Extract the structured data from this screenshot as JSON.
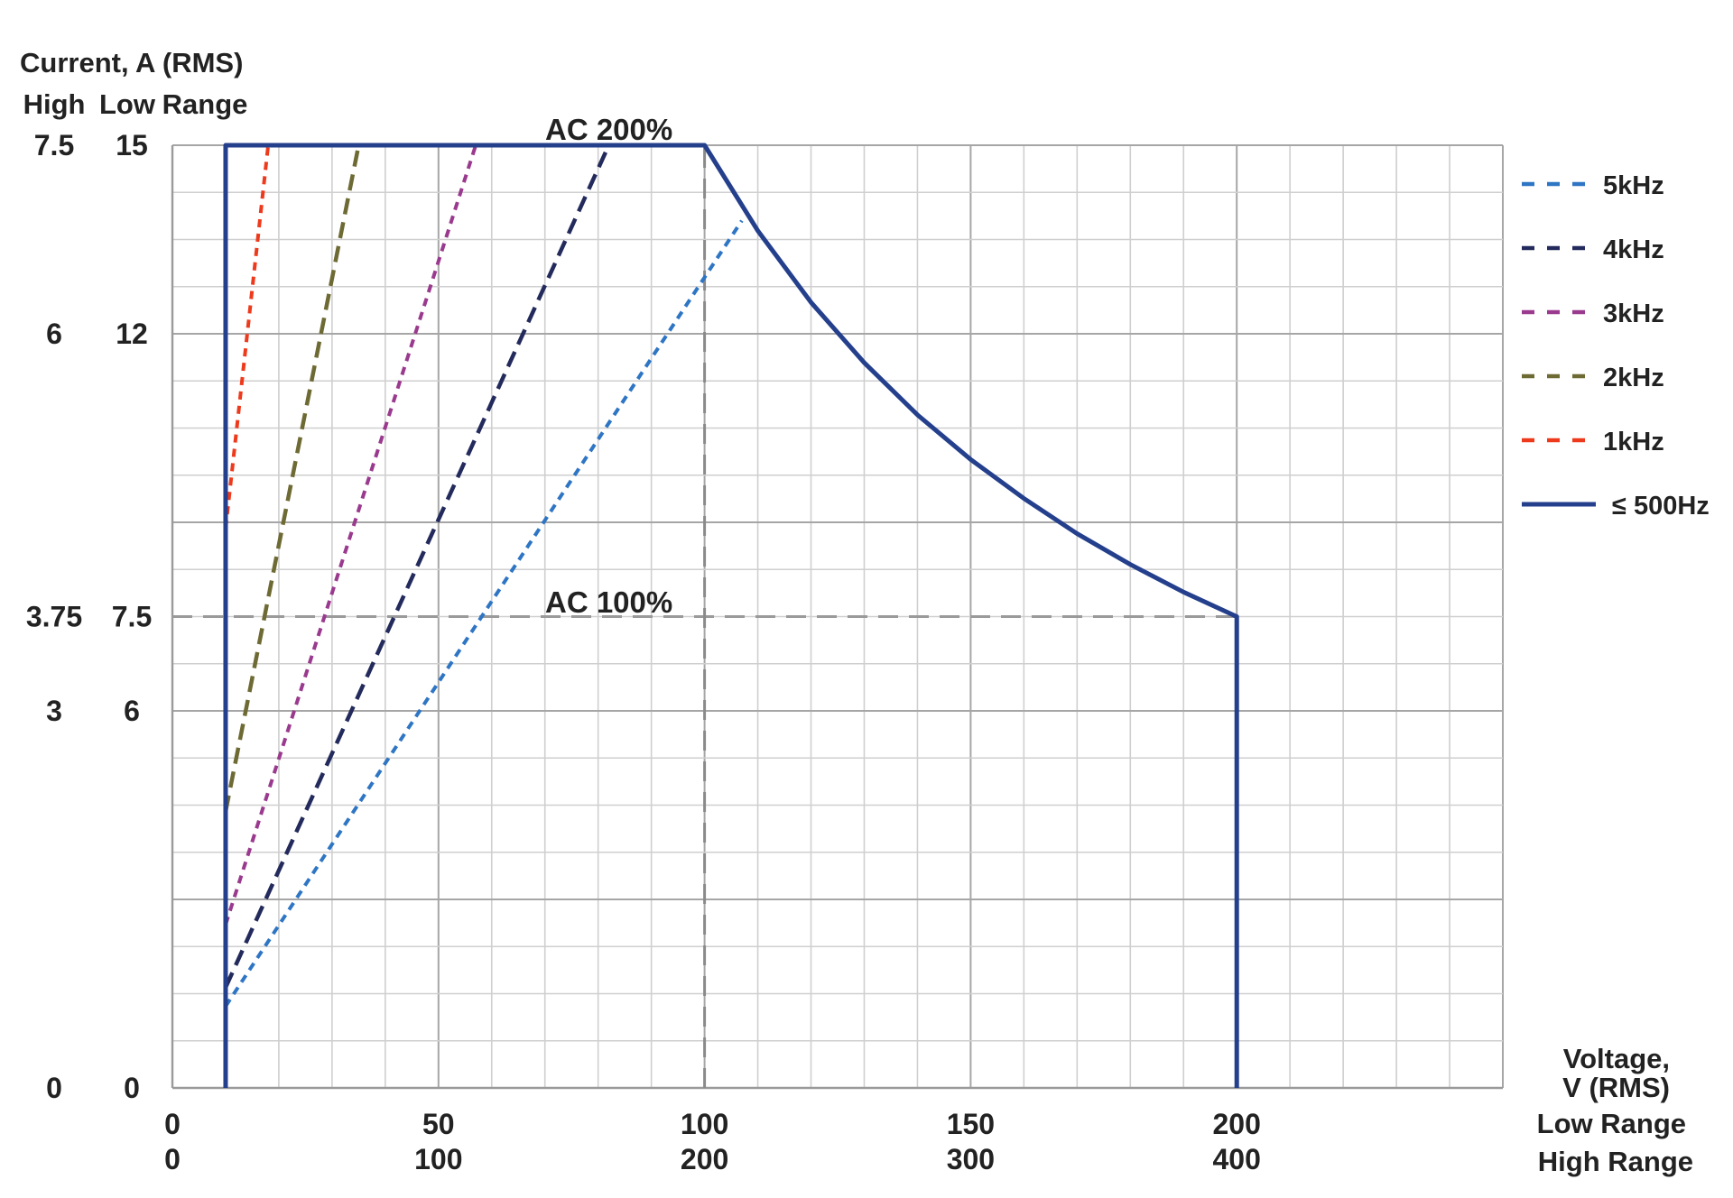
{
  "chart_data": {
    "type": "line",
    "y_title": "Current, A (RMS)",
    "y_subheaders": [
      "High",
      "Low",
      "Range"
    ],
    "x_title_lines": [
      "Voltage,",
      "V (RMS)"
    ],
    "x_low_range_label": "Low Range",
    "x_high_range_label": "High Range",
    "xlim": [
      0,
      250
    ],
    "ylim": [
      0,
      15
    ],
    "x_ticks": [
      {
        "value": 0,
        "low": "0",
        "high": "0"
      },
      {
        "value": 50,
        "low": "50",
        "high": "100"
      },
      {
        "value": 100,
        "low": "100",
        "high": "200"
      },
      {
        "value": 150,
        "low": "150",
        "high": "300"
      },
      {
        "value": 200,
        "low": "200",
        "high": "400"
      }
    ],
    "y_ticks": [
      {
        "value": 15,
        "high": "7.5",
        "low": "15"
      },
      {
        "value": 12,
        "high": "6",
        "low": "12"
      },
      {
        "value": 7.5,
        "high": "3.75",
        "low": "7.5"
      },
      {
        "value": 6,
        "high": "3",
        "low": "6"
      },
      {
        "value": 0,
        "high": "0",
        "low": "0"
      }
    ],
    "grid": true,
    "annotations": [
      {
        "text": "AC 200%",
        "x": 82,
        "y": 15
      },
      {
        "text": "AC 100%",
        "x": 82,
        "y": 7.5
      }
    ],
    "reference_lines": [
      {
        "orientation": "horizontal",
        "y": 7.5,
        "x_from": 0,
        "x_to": 200
      },
      {
        "orientation": "vertical",
        "x": 100,
        "y_from": 0,
        "y_to": 15
      }
    ],
    "legend_position": "right",
    "series": [
      {
        "name": "5kHz",
        "color": "#2e75c4",
        "style": "dotted",
        "x": [
          10,
          107
        ],
        "y": [
          1.3,
          13.8
        ]
      },
      {
        "name": "4kHz",
        "color": "#232a5c",
        "style": "dashed",
        "x": [
          10,
          82
        ],
        "y": [
          1.6,
          15
        ]
      },
      {
        "name": "3kHz",
        "color": "#9a3a8e",
        "style": "dotted",
        "x": [
          10,
          57
        ],
        "y": [
          2.6,
          15
        ]
      },
      {
        "name": "2kHz",
        "color": "#6e6a34",
        "style": "dashed",
        "x": [
          10,
          35
        ],
        "y": [
          4.4,
          15
        ]
      },
      {
        "name": "1kHz",
        "color": "#ee3a1c",
        "style": "dotted",
        "x": [
          10,
          18
        ],
        "y": [
          8.9,
          15
        ]
      },
      {
        "name": "≤ 500Hz",
        "color": "#243f8c",
        "style": "solid",
        "x": [
          10,
          10,
          100,
          110,
          120,
          130,
          140,
          150,
          160,
          170,
          180,
          190,
          200,
          200
        ],
        "y": [
          0,
          15,
          15,
          13.64,
          12.5,
          11.54,
          10.71,
          10,
          9.38,
          8.82,
          8.33,
          7.89,
          7.5,
          0
        ]
      }
    ]
  }
}
